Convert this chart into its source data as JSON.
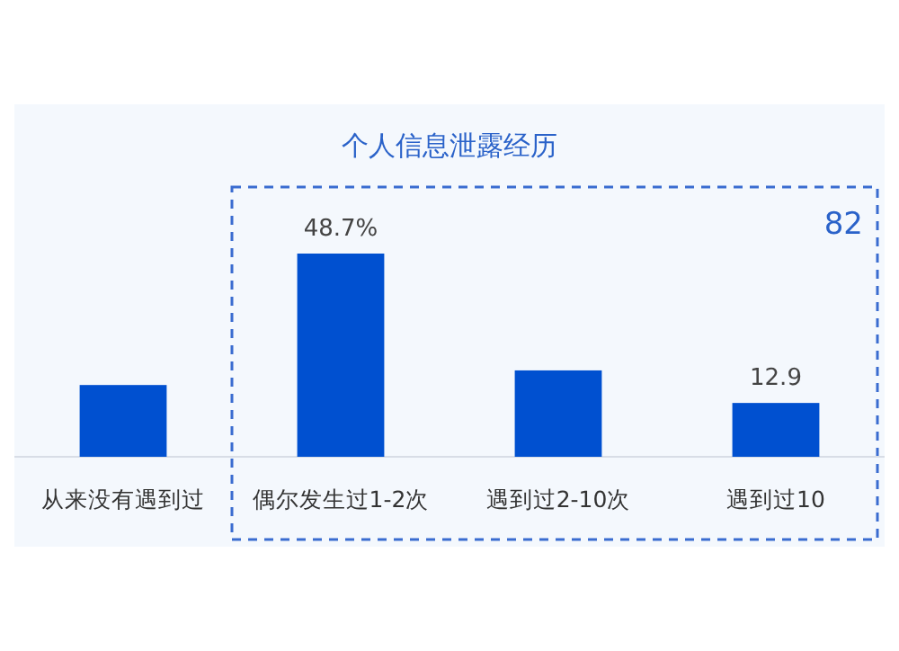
{
  "chart_data": {
    "type": "bar",
    "title": "个人信息泄露经历",
    "categories": [
      "从来没有遇到过",
      "偶尔发生过1-2次",
      "遇到过2-10次",
      "遇到过10"
    ],
    "values": [
      17.2,
      48.7,
      20.7,
      12.9
    ],
    "value_labels": [
      null,
      "48.7%",
      null,
      "12.9"
    ],
    "color": "#0050d0",
    "annotations": [
      "82"
    ]
  }
}
